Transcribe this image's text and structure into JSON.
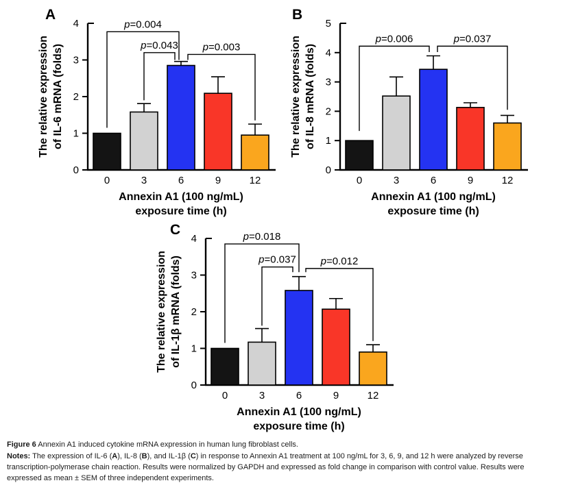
{
  "colors": {
    "background": "#ffffff",
    "axis": "#000000",
    "bar_black": "#141414",
    "bar_gray": "#d2d2d2",
    "bar_blue": "#2433f2",
    "bar_red": "#f93628",
    "bar_orange": "#faa61e"
  },
  "chart_data": [
    {
      "panel": "A",
      "type": "bar",
      "ylabel": [
        "The relative expression",
        "of IL-6 mRNA (folds)"
      ],
      "xlabel": [
        "Annexin A1 (100 ng/mL)",
        "exposure time (h)"
      ],
      "categories": [
        "0",
        "3",
        "6",
        "9",
        "12"
      ],
      "values": [
        1.0,
        1.58,
        2.85,
        2.09,
        0.95
      ],
      "errors": [
        0,
        0.23,
        0.11,
        0.45,
        0.3
      ],
      "ylim": [
        0,
        4
      ],
      "yticks": [
        0,
        1,
        2,
        3,
        4
      ],
      "grid": false,
      "bar_colors": [
        "#141414",
        "#d2d2d2",
        "#2433f2",
        "#f93628",
        "#faa61e"
      ],
      "significance": [
        {
          "label": "p=0.004",
          "i1": 0,
          "i2": 2,
          "x1_off": 0,
          "x2_off": -3,
          "top": 3.77,
          "drop1": 1.15,
          "drop2": 3.0
        },
        {
          "label": "p=0.043",
          "i1": 1,
          "i2": 2,
          "x1_off": 0,
          "x2_off": -9,
          "top": 3.2,
          "drop1": 1.9,
          "drop2": 3.0
        },
        {
          "label": "p=0.003",
          "i1": 2,
          "i2": 4,
          "x1_off": 10,
          "x2_off": 0,
          "top": 3.15,
          "drop1": 3.0,
          "drop2": 1.35
        }
      ]
    },
    {
      "panel": "B",
      "type": "bar",
      "ylabel": [
        "The relative expression",
        "of IL-8 mRNA (folds)"
      ],
      "xlabel": [
        "Annexin A1 (100 ng/mL)",
        "exposure time (h)"
      ],
      "categories": [
        "0",
        "3",
        "6",
        "9",
        "12"
      ],
      "values": [
        1.0,
        2.52,
        3.43,
        2.13,
        1.6
      ],
      "errors": [
        0,
        0.65,
        0.46,
        0.16,
        0.26
      ],
      "ylim": [
        0,
        5
      ],
      "yticks": [
        0,
        1,
        2,
        3,
        4,
        5
      ],
      "grid": false,
      "bar_colors": [
        "#141414",
        "#d2d2d2",
        "#2433f2",
        "#f93628",
        "#faa61e"
      ],
      "significance": [
        {
          "label": "p=0.006",
          "i1": 0,
          "i2": 2,
          "x1_off": 0,
          "x2_off": -6,
          "top": 4.22,
          "drop1": 1.33,
          "drop2": 4.02
        },
        {
          "label": "p=0.037",
          "i1": 2,
          "i2": 4,
          "x1_off": 6,
          "x2_off": 0,
          "top": 4.22,
          "drop1": 4.02,
          "drop2": 2.05
        }
      ]
    },
    {
      "panel": "C",
      "type": "bar",
      "ylabel": [
        "The relative expression",
        "of IL-1β mRNA (folds)"
      ],
      "xlabel": [
        "Annexin A1 (100 ng/mL)",
        "exposure time (h)"
      ],
      "categories": [
        "0",
        "3",
        "6",
        "9",
        "12"
      ],
      "values": [
        1.0,
        1.17,
        2.58,
        2.07,
        0.9
      ],
      "errors": [
        0,
        0.37,
        0.38,
        0.29,
        0.2
      ],
      "ylim": [
        0,
        4
      ],
      "yticks": [
        0,
        1,
        2,
        3,
        4
      ],
      "grid": false,
      "bar_colors": [
        "#141414",
        "#d2d2d2",
        "#2433f2",
        "#f93628",
        "#faa61e"
      ],
      "significance": [
        {
          "label": "p=0.018",
          "i1": 0,
          "i2": 2,
          "x1_off": 0,
          "x2_off": 0,
          "top": 3.85,
          "drop1": 1.15,
          "drop2": 3.08
        },
        {
          "label": "p=0.037",
          "i1": 1,
          "i2": 2,
          "x1_off": 0,
          "x2_off": -9,
          "top": 3.22,
          "drop1": 1.62,
          "drop2": 3.08
        },
        {
          "label": "p=0.012",
          "i1": 2,
          "i2": 4,
          "x1_off": 10,
          "x2_off": 0,
          "top": 3.18,
          "drop1": 3.08,
          "drop2": 1.2
        }
      ]
    }
  ],
  "caption": {
    "figure_label": "Figure 6",
    "figure_title": " Annexin A1 induced cytokine mRNA expression in human lung fibroblast cells.",
    "notes_segments": [
      {
        "text": "Notes:",
        "bold": true
      },
      {
        "text": " The expression of IL-6 (",
        "bold": false
      },
      {
        "text": "A",
        "bold": true
      },
      {
        "text": "), IL-8 (",
        "bold": false
      },
      {
        "text": "B",
        "bold": true
      },
      {
        "text": "), and IL-1β (",
        "bold": false
      },
      {
        "text": "C",
        "bold": true
      },
      {
        "text": ") in response to Annexin A1 treatment at 100 ng/mL for 3, 6, 9, and 12 h were analyzed by reverse transcription-polymerase chain reaction. Results were normalized by GAPDH and expressed as fold change in comparison with control value. Results were expressed as mean ± SEM of three independent experiments.",
        "bold": false
      }
    ]
  }
}
